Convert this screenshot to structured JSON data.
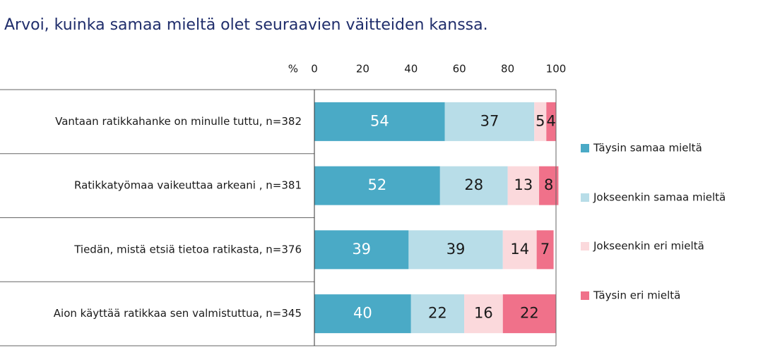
{
  "chart_data": {
    "type": "stacked-barh",
    "title": "Arvoi, kuinka samaa mieltä olet seuraavien väitteiden kanssa.",
    "unit_label": "%",
    "categories": [
      "Vantaan ratikkahanke on minulle tuttu, n=382",
      "Ratikkatyömaa vaikeuttaa arkeani , n=381",
      "Tiedän, mistä etsiä tietoa ratikasta, n=376",
      "Aion käyttää ratikkaa sen valmistuttua, n=345"
    ],
    "series": [
      {
        "name": "Täysin samaa mieltä",
        "color": "#4aaac6",
        "values": [
          54,
          52,
          39,
          40
        ]
      },
      {
        "name": "Jokseenkin samaa mieltä",
        "color": "#b8dde8",
        "values": [
          37,
          28,
          39,
          22
        ]
      },
      {
        "name": "Jokseenkin eri mieltä",
        "color": "#fbd9dc",
        "values": [
          5,
          13,
          14,
          16
        ]
      },
      {
        "name": "Täysin eri mieltä",
        "color": "#f0718a",
        "values": [
          4,
          8,
          7,
          22
        ]
      }
    ],
    "xlim": [
      0,
      100
    ],
    "xticks": [
      0,
      20,
      40,
      60,
      80,
      100
    ]
  }
}
